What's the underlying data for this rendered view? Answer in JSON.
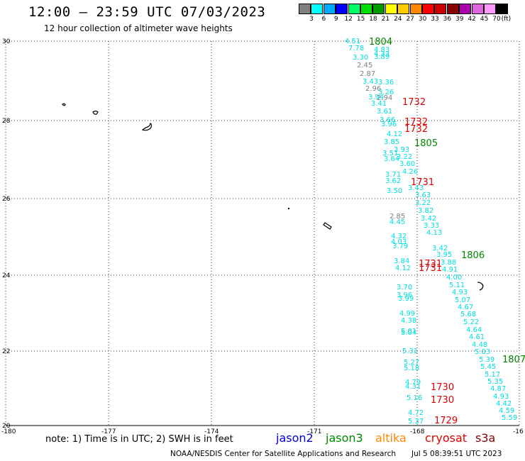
{
  "header": {
    "title": "12:00 – 23:59 UTC 07/03/2023",
    "subtitle": "12 hour collection of altimeter wave heights"
  },
  "color_scale": {
    "unit_label": "(ft)",
    "bins": [
      {
        "label": "3",
        "color": "#808080"
      },
      {
        "label": "6",
        "color": "#00ffff"
      },
      {
        "label": "9",
        "color": "#00aaff"
      },
      {
        "label": "12",
        "color": "#0000ff"
      },
      {
        "label": "15",
        "color": "#00ff66"
      },
      {
        "label": "18",
        "color": "#00dd00"
      },
      {
        "label": "21",
        "color": "#009900"
      },
      {
        "label": "24",
        "color": "#ffff00"
      },
      {
        "label": "27",
        "color": "#ffcc00"
      },
      {
        "label": "30",
        "color": "#ff8800"
      },
      {
        "label": "33",
        "color": "#ff0000"
      },
      {
        "label": "36",
        "color": "#cc0000"
      },
      {
        "label": "39",
        "color": "#880000"
      },
      {
        "label": "42",
        "color": "#aa00aa"
      },
      {
        "label": "45",
        "color": "#dd66dd"
      },
      {
        "label": "70",
        "color": "#ff99ff"
      },
      {
        "label": "",
        "color": "#000000"
      }
    ]
  },
  "map": {
    "lat_labels": [
      "30",
      "28",
      "26",
      "24",
      "22",
      "20"
    ],
    "lon_labels": [
      "-180",
      "-177",
      "-174",
      "-171",
      "-168",
      "-16"
    ],
    "track_labels": [
      {
        "t": "4.51",
        "c": "#00dddd"
      },
      {
        "t": "7.78",
        "c": "#00dddd"
      },
      {
        "t": "4.83",
        "c": "#00dddd"
      },
      {
        "t": "4.33",
        "c": "#00dddd"
      },
      {
        "t": "3.30",
        "c": "#00dddd"
      },
      {
        "t": "3.89",
        "c": "#00dddd"
      },
      {
        "t": "2.45",
        "c": "#808080"
      },
      {
        "t": "2.87",
        "c": "#808080"
      },
      {
        "t": "3.43",
        "c": "#00dddd"
      },
      {
        "t": "3.36",
        "c": "#00dddd"
      },
      {
        "t": "2.96",
        "c": "#808080"
      },
      {
        "t": "3.26",
        "c": "#00dddd"
      },
      {
        "t": "3.94",
        "c": "#00dddd"
      },
      {
        "t": "2.94",
        "c": "#808080"
      },
      {
        "t": "3.41",
        "c": "#00dddd"
      },
      {
        "t": "3.61",
        "c": "#00dddd"
      },
      {
        "t": "3.66",
        "c": "#00dddd"
      },
      {
        "t": "3.96",
        "c": "#00dddd"
      },
      {
        "t": "4.12",
        "c": "#00dddd"
      },
      {
        "t": "3.85",
        "c": "#00dddd"
      },
      {
        "t": "3.93",
        "c": "#00dddd"
      },
      {
        "t": "3.51",
        "c": "#00dddd"
      },
      {
        "t": "3.64",
        "c": "#00dddd"
      },
      {
        "t": "3.22",
        "c": "#00dddd"
      },
      {
        "t": "3.60",
        "c": "#00dddd"
      },
      {
        "t": "3.71",
        "c": "#00dddd"
      },
      {
        "t": "4.26",
        "c": "#00dddd"
      },
      {
        "t": "3.62",
        "c": "#00dddd"
      },
      {
        "t": "3.43",
        "c": "#00dddd"
      },
      {
        "t": "3.50",
        "c": "#00dddd"
      },
      {
        "t": "3.63",
        "c": "#00dddd"
      },
      {
        "t": "3.22",
        "c": "#00dddd"
      },
      {
        "t": "3.82",
        "c": "#00dddd"
      },
      {
        "t": "2.85",
        "c": "#808080"
      },
      {
        "t": "4.45",
        "c": "#00dddd"
      },
      {
        "t": "3.42",
        "c": "#00dddd"
      },
      {
        "t": "3.33",
        "c": "#00dddd"
      },
      {
        "t": "4.13",
        "c": "#00dddd"
      },
      {
        "t": "4.32",
        "c": "#00dddd"
      },
      {
        "t": "4.03",
        "c": "#00dddd"
      },
      {
        "t": "3.79",
        "c": "#00dddd"
      },
      {
        "t": "3.42",
        "c": "#00dddd"
      },
      {
        "t": "3.95",
        "c": "#00dddd"
      },
      {
        "t": "3.84",
        "c": "#00dddd"
      },
      {
        "t": "3.88",
        "c": "#00dddd"
      },
      {
        "t": "4.12",
        "c": "#00dddd"
      },
      {
        "t": "4.91",
        "c": "#00dddd"
      },
      {
        "t": "4.00",
        "c": "#00dddd"
      },
      {
        "t": "3.70",
        "c": "#00dddd"
      },
      {
        "t": "5.11",
        "c": "#00dddd"
      },
      {
        "t": "3.96",
        "c": "#00dddd"
      },
      {
        "t": "4.93",
        "c": "#00dddd"
      },
      {
        "t": "3.99",
        "c": "#00dddd"
      },
      {
        "t": "5.07",
        "c": "#00dddd"
      },
      {
        "t": "4.67",
        "c": "#00dddd"
      },
      {
        "t": "4.99",
        "c": "#00dddd"
      },
      {
        "t": "5.68",
        "c": "#00dddd"
      },
      {
        "t": "4.38",
        "c": "#00dddd"
      },
      {
        "t": "5.22",
        "c": "#00dddd"
      },
      {
        "t": "5.01",
        "c": "#00dddd"
      },
      {
        "t": "4.64",
        "c": "#00dddd"
      },
      {
        "t": "5.04",
        "c": "#00dddd"
      },
      {
        "t": "4.61",
        "c": "#00dddd"
      },
      {
        "t": "4.48",
        "c": "#00dddd"
      },
      {
        "t": "5.03",
        "c": "#00dddd"
      },
      {
        "t": "5.31",
        "c": "#00dddd"
      },
      {
        "t": "5.39",
        "c": "#00dddd"
      },
      {
        "t": "5.27",
        "c": "#00dddd"
      },
      {
        "t": "5.45",
        "c": "#00dddd"
      },
      {
        "t": "5.18",
        "c": "#00dddd"
      },
      {
        "t": "5.17",
        "c": "#00dddd"
      },
      {
        "t": "5.35",
        "c": "#00dddd"
      },
      {
        "t": "4.79",
        "c": "#00dddd"
      },
      {
        "t": "4.87",
        "c": "#00dddd"
      },
      {
        "t": "4.31",
        "c": "#00dddd"
      },
      {
        "t": "4.93",
        "c": "#00dddd"
      },
      {
        "t": "5.16",
        "c": "#00dddd"
      },
      {
        "t": "4.42",
        "c": "#00dddd"
      },
      {
        "t": "4.72",
        "c": "#00dddd"
      },
      {
        "t": "4.59",
        "c": "#00dddd"
      },
      {
        "t": "5.37",
        "c": "#00dddd"
      },
      {
        "t": "5.59",
        "c": "#00dddd"
      }
    ],
    "pass_labels": [
      {
        "t": "1804",
        "c": "#008800"
      },
      {
        "t": "1732",
        "c": "#dd0000"
      },
      {
        "t": "1732",
        "c": "#dd0000"
      },
      {
        "t": "1732",
        "c": "#dd0000"
      },
      {
        "t": "1805",
        "c": "#008800"
      },
      {
        "t": "1731",
        "c": "#dd0000"
      },
      {
        "t": "1806",
        "c": "#008800"
      },
      {
        "t": "1731",
        "c": "#dd0000"
      },
      {
        "t": "1731",
        "c": "#dd0000"
      },
      {
        "t": "1807",
        "c": "#008800"
      },
      {
        "t": "1730",
        "c": "#dd0000"
      },
      {
        "t": "1730",
        "c": "#dd0000"
      },
      {
        "t": "1729",
        "c": "#dd0000"
      }
    ]
  },
  "legend": {
    "note": "note: 1) Time is in UTC; 2) SWH is in feet",
    "satellites": [
      {
        "name": "jason2",
        "color": "#0000dd"
      },
      {
        "name": "jason3",
        "color": "#008800"
      },
      {
        "name": "altika",
        "color": "#ff8800"
      },
      {
        "name": "cryosat",
        "color": "#dd0000"
      },
      {
        "name": "s3a",
        "color": "#880000"
      }
    ]
  },
  "footer": {
    "credit": "NOAA/NESDIS Center for Satellite Applications and Research",
    "timestamp": "Jul  5 08:39:51 UTC 2023"
  }
}
